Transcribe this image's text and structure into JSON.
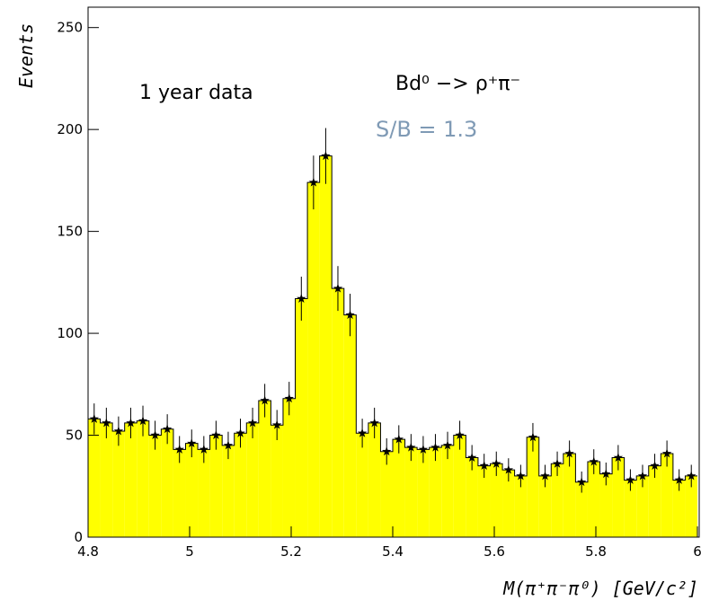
{
  "chart_data": {
    "type": "histogram",
    "x_label": "M(π⁺π⁻π⁰)  [GeV/c²]",
    "y_label": "Events",
    "annotations": [
      "1 year data",
      "Bd⁰ −> ρ⁺π⁻",
      "S/B = 1.3"
    ],
    "bins": [
      4.8,
      4.824,
      4.848,
      4.872,
      4.896,
      4.92,
      4.944,
      4.968,
      4.992,
      5.016,
      5.04,
      5.064,
      5.088,
      5.112,
      5.136,
      5.16,
      5.184,
      5.208,
      5.232,
      5.256,
      5.28,
      5.304,
      5.328,
      5.352,
      5.376,
      5.4,
      5.424,
      5.448,
      5.472,
      5.496,
      5.52,
      5.544,
      5.568,
      5.592,
      5.616,
      5.64,
      5.664,
      5.688,
      5.712,
      5.736,
      5.76,
      5.784,
      5.808,
      5.832,
      5.856,
      5.88,
      5.904,
      5.928,
      5.952,
      5.976,
      6.0
    ],
    "values": [
      58,
      56,
      52,
      56,
      57,
      50,
      53,
      43,
      46,
      43,
      50,
      45,
      51,
      56,
      67,
      55,
      68,
      117,
      174,
      187,
      122,
      109,
      51,
      56,
      42,
      48,
      44,
      43,
      44,
      45,
      50,
      39,
      35,
      36,
      33,
      30,
      49,
      30,
      36,
      41,
      27,
      37,
      31,
      39,
      28,
      30,
      35,
      41,
      28,
      30
    ],
    "errors": [
      7.6,
      7.5,
      7.2,
      7.5,
      7.5,
      7.1,
      7.3,
      6.6,
      6.8,
      6.6,
      7.1,
      6.7,
      7.1,
      7.5,
      8.2,
      7.4,
      8.2,
      10.8,
      13.2,
      13.7,
      11.0,
      10.4,
      7.1,
      7.5,
      6.5,
      6.9,
      6.6,
      6.6,
      6.6,
      6.7,
      7.1,
      6.2,
      5.9,
      6.0,
      5.7,
      5.5,
      7.0,
      5.5,
      6.0,
      6.4,
      5.2,
      6.1,
      5.6,
      6.2,
      5.3,
      5.5,
      5.9,
      6.4,
      5.3,
      5.5
    ],
    "color": "#ffff00",
    "annotation_color": "#7f9ab5",
    "xlim": [
      4.8,
      6.0
    ],
    "ylim": [
      0,
      260
    ],
    "xticks": [
      4.8,
      5,
      5.2,
      5.4,
      5.6,
      5.8,
      6
    ],
    "yticks": [
      0,
      50,
      100,
      150,
      200,
      250
    ]
  }
}
